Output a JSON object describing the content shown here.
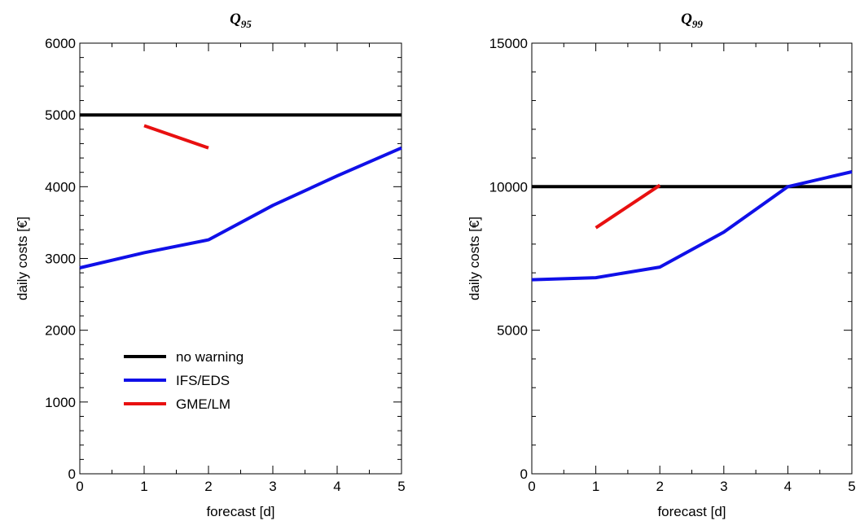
{
  "chart_data": [
    {
      "type": "line",
      "title": "Q",
      "title_subscript": "95",
      "xlabel": "forecast  [d]",
      "ylabel": "daily costs  [€]",
      "xlim": [
        0,
        5
      ],
      "ylim": [
        0,
        6000
      ],
      "xticks": [
        0,
        1,
        2,
        3,
        4,
        5
      ],
      "yticks": [
        0,
        1000,
        2000,
        3000,
        4000,
        5000,
        6000
      ],
      "grid": false,
      "legend": "lower-left",
      "series": [
        {
          "name": "no warning",
          "color": "#000000",
          "x": [
            0,
            5
          ],
          "y": [
            5000,
            5000
          ]
        },
        {
          "name": "IFS/EDS",
          "color": "#1010e8",
          "x": [
            0,
            1,
            2,
            3,
            4,
            5
          ],
          "y": [
            2870,
            3080,
            3260,
            3740,
            4150,
            4540
          ]
        },
        {
          "name": "GME/LM",
          "color": "#e81010",
          "x": [
            1,
            2
          ],
          "y": [
            4850,
            4540
          ]
        }
      ]
    },
    {
      "type": "line",
      "title": "Q",
      "title_subscript": "99",
      "xlabel": "forecast  [d]",
      "ylabel": "daily costs  [€]",
      "xlim": [
        0,
        5
      ],
      "ylim": [
        0,
        15000
      ],
      "xticks": [
        0,
        1,
        2,
        3,
        4,
        5
      ],
      "yticks": [
        0,
        5000,
        10000,
        15000
      ],
      "grid": false,
      "legend": "none",
      "series": [
        {
          "name": "no warning",
          "color": "#000000",
          "x": [
            0,
            5
          ],
          "y": [
            10000,
            10000
          ]
        },
        {
          "name": "IFS/EDS",
          "color": "#1010e8",
          "x": [
            0,
            1,
            2,
            3,
            4,
            5
          ],
          "y": [
            6760,
            6830,
            7200,
            8420,
            10000,
            10520
          ]
        },
        {
          "name": "GME/LM",
          "color": "#e81010",
          "x": [
            1,
            2
          ],
          "y": [
            8570,
            10050
          ]
        }
      ]
    }
  ]
}
